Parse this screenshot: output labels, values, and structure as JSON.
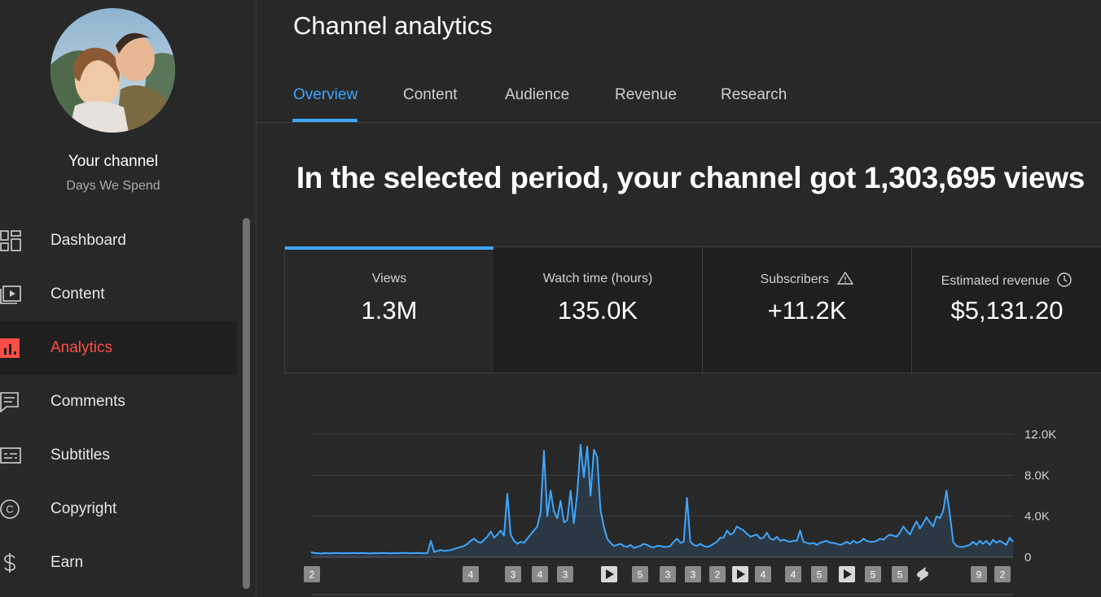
{
  "sidebar": {
    "channel_title": "Your channel",
    "channel_name": "Days We Spend",
    "items": [
      {
        "label": "Dashboard",
        "icon": "dashboard-icon"
      },
      {
        "label": "Content",
        "icon": "content-icon"
      },
      {
        "label": "Analytics",
        "icon": "analytics-icon",
        "active": true
      },
      {
        "label": "Comments",
        "icon": "comments-icon"
      },
      {
        "label": "Subtitles",
        "icon": "subtitles-icon"
      },
      {
        "label": "Copyright",
        "icon": "copyright-icon"
      },
      {
        "label": "Earn",
        "icon": "dollar-icon"
      }
    ]
  },
  "header": {
    "title": "Channel analytics",
    "tabs": [
      "Overview",
      "Content",
      "Audience",
      "Revenue",
      "Research"
    ],
    "active_tab": "Overview"
  },
  "headline": "In the selected period, your channel got 1,303,695 views",
  "metrics": [
    {
      "label": "Views",
      "value": "1.3M"
    },
    {
      "label": "Watch time (hours)",
      "value": "135.0K"
    },
    {
      "label": "Subscribers",
      "value": "+11.2K"
    },
    {
      "label": "Estimated revenue",
      "value": "$5,131.20"
    }
  ],
  "colors": {
    "accent": "#3ea6ff",
    "active_nav": "#ff4e45",
    "line": "#3ea6ff"
  },
  "chart_data": {
    "type": "area",
    "y_tick_labels": [
      "12.0K",
      "8.0K",
      "4.0K",
      "0"
    ],
    "ylim": [
      0,
      12000
    ],
    "values": [
      500,
      400,
      400,
      350,
      400,
      380,
      380,
      400,
      420,
      380,
      400,
      390,
      400,
      420,
      380,
      420,
      400,
      380,
      360,
      400,
      380,
      420,
      400,
      400,
      380,
      400,
      380,
      420,
      420,
      400,
      380,
      400,
      420,
      400,
      380,
      400,
      1600,
      500,
      600,
      700,
      600,
      650,
      700,
      800,
      900,
      1000,
      1100,
      1300,
      1600,
      1800,
      1500,
      1400,
      1700,
      2000,
      2500,
      1900,
      2200,
      2600,
      2100,
      6200,
      2200,
      1600,
      1300,
      1500,
      1400,
      1800,
      2200,
      2600,
      3000,
      4400,
      10400,
      4000,
      6500,
      4500,
      3800,
      5500,
      3400,
      3600,
      6500,
      3300,
      6200,
      11000,
      7800,
      10800,
      6000,
      10500,
      9800,
      4600,
      3000,
      1800,
      1400,
      1100,
      1200,
      1300,
      1100,
      1000,
      1200,
      900,
      1000,
      1100,
      1300,
      1200,
      1000,
      950,
      1100,
      1100,
      1000,
      1000,
      1100,
      1500,
      1800,
      1400,
      1500,
      5800,
      1500,
      1200,
      1100,
      1300,
      1100,
      1000,
      1100,
      1300,
      1500,
      1900,
      1900,
      2600,
      2200,
      2400,
      3000,
      2800,
      2600,
      2300,
      2000,
      2100,
      2200,
      1800,
      1900,
      2400,
      1800,
      1700,
      2000,
      1600,
      1700,
      1600,
      1500,
      1600,
      1600,
      2600,
      1500,
      1400,
      1300,
      1400,
      1200,
      1400,
      1500,
      1600,
      1400,
      1400,
      1300,
      1200,
      1300,
      1500,
      1300,
      1600,
      1400,
      1500,
      1800,
      1600,
      1500,
      1500,
      1600,
      1800,
      1700,
      2000,
      2200,
      2100,
      2000,
      2400,
      3000,
      2600,
      2200,
      2900,
      3500,
      2800,
      3300,
      3900,
      3400,
      3000,
      4000,
      3800,
      4500,
      6500,
      4200,
      1500,
      1100,
      1000,
      1000,
      1100,
      1200,
      1500,
      1200,
      1600,
      1300,
      1600,
      1200,
      1700,
      1400,
      1600,
      1400,
      1200,
      1900,
      1500
    ],
    "markers": [
      {
        "label": "2",
        "type": "count"
      },
      {
        "label": "4",
        "type": "count"
      },
      {
        "label": "3",
        "type": "count"
      },
      {
        "label": "4",
        "type": "count"
      },
      {
        "label": "3",
        "type": "count"
      },
      {
        "label": "",
        "type": "play"
      },
      {
        "label": "5",
        "type": "count"
      },
      {
        "label": "3",
        "type": "count"
      },
      {
        "label": "3",
        "type": "count"
      },
      {
        "label": "2",
        "type": "count"
      },
      {
        "label": "",
        "type": "play"
      },
      {
        "label": "4",
        "type": "count"
      },
      {
        "label": "4",
        "type": "count"
      },
      {
        "label": "5",
        "type": "count"
      },
      {
        "label": "",
        "type": "play"
      },
      {
        "label": "5",
        "type": "count"
      },
      {
        "label": "5",
        "type": "count"
      },
      {
        "label": "",
        "type": "shorts"
      },
      {
        "label": "9",
        "type": "count"
      },
      {
        "label": "2",
        "type": "count"
      }
    ]
  }
}
